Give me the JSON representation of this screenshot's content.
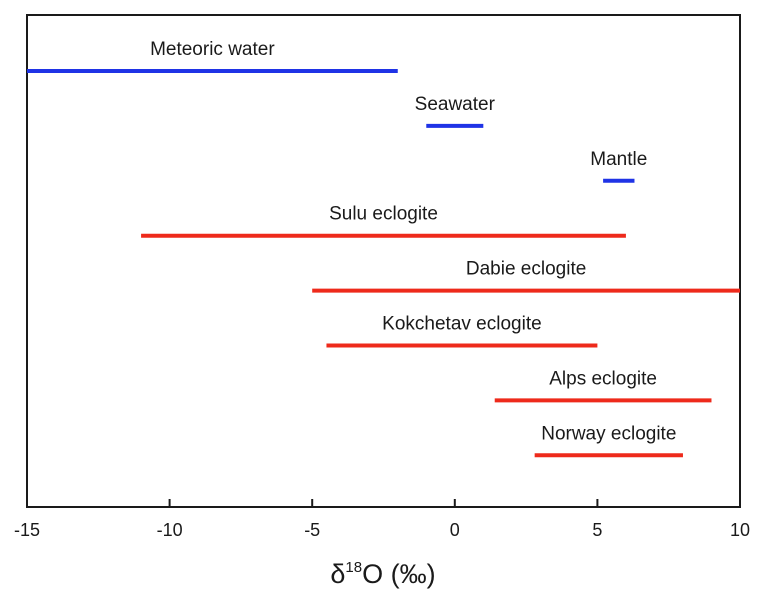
{
  "chart_data": {
    "type": "range",
    "xlabel": {
      "symbol": "δ",
      "superscript": "18",
      "rest": "O (‰)"
    },
    "xlim": [
      -15,
      10
    ],
    "xticks": [
      -15,
      -10,
      -5,
      0,
      5,
      10
    ],
    "grid": false,
    "legend": "none",
    "ranges": [
      {
        "label": "Meteoric water",
        "start": -15,
        "end": -2,
        "color": "#1f33e6"
      },
      {
        "label": "Seawater",
        "start": -1,
        "end": 1,
        "color": "#1f33e6"
      },
      {
        "label": "Mantle",
        "start": 5.2,
        "end": 6.3,
        "color": "#1f33e6"
      },
      {
        "label": "Sulu eclogite",
        "start": -11,
        "end": 6,
        "color": "#ee2a1b"
      },
      {
        "label": "Dabie eclogite",
        "start": -5,
        "end": 10,
        "color": "#ee2a1b"
      },
      {
        "label": "Kokchetav eclogite",
        "start": -4.5,
        "end": 5,
        "color": "#ee2a1b"
      },
      {
        "label": "Alps eclogite",
        "start": 1.4,
        "end": 9,
        "color": "#ee2a1b"
      },
      {
        "label": "Norway eclogite",
        "start": 2.8,
        "end": 8,
        "color": "#ee2a1b"
      }
    ]
  }
}
